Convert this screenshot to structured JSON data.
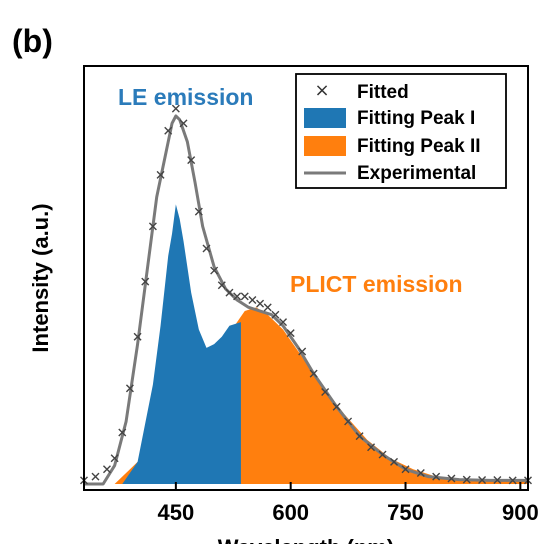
{
  "panel_label": "(b)",
  "chart_data": {
    "type": "area",
    "xlabel": "Wavelength (nm)",
    "ylabel": "Intensity (a.u.)",
    "xlim": [
      330,
      910
    ],
    "ylim": [
      0,
      1.05
    ],
    "xticks": [
      450,
      600,
      750,
      900
    ],
    "grid": false,
    "legend_position": "top-right",
    "legend": [
      {
        "label": "Fitted",
        "symbol": "cross"
      },
      {
        "label": "Fitting Peak I",
        "symbol": "box",
        "color": "#1f77b4"
      },
      {
        "label": "Fitting Peak II",
        "symbol": "box",
        "color": "#ff7f0e"
      },
      {
        "label": "Experimental",
        "symbol": "line",
        "color": "#7a7a7a"
      }
    ],
    "annotations": [
      {
        "text": "LE emission",
        "color": "#2b7bba"
      },
      {
        "text": "PLICT emission",
        "color": "#ff7f0e"
      }
    ],
    "series": [
      {
        "name": "Fitting Peak I",
        "kind": "filled",
        "color": "#1f77b4",
        "x": [
          380,
          400,
          420,
          430,
          440,
          445,
          450,
          455,
          460,
          470,
          480,
          490,
          500,
          510,
          520,
          535
        ],
        "values": [
          0.0,
          0.06,
          0.27,
          0.43,
          0.62,
          0.68,
          0.76,
          0.72,
          0.66,
          0.52,
          0.42,
          0.37,
          0.38,
          0.4,
          0.43,
          0.44
        ]
      },
      {
        "name": "Fitting Peak II",
        "kind": "filled",
        "color": "#ff7f0e",
        "x": [
          330,
          370,
          400,
          420,
          440,
          460,
          480,
          500,
          520,
          540,
          555,
          570,
          590,
          610,
          640,
          670,
          700,
          730,
          760,
          790,
          820,
          850,
          880,
          910
        ],
        "values": [
          0.0,
          0.0,
          0.06,
          0.09,
          0.13,
          0.18,
          0.25,
          0.32,
          0.41,
          0.47,
          0.48,
          0.46,
          0.42,
          0.36,
          0.27,
          0.19,
          0.12,
          0.07,
          0.04,
          0.02,
          0.015,
          0.012,
          0.012,
          0.012
        ]
      },
      {
        "name": "Experimental",
        "kind": "line",
        "color": "#7a7a7a",
        "x": [
          330,
          355,
          370,
          385,
          400,
          415,
          425,
          435,
          445,
          450,
          455,
          465,
          475,
          485,
          500,
          515,
          530,
          545,
          560,
          575,
          590,
          610,
          630,
          660,
          690,
          720,
          750,
          780,
          820,
          860,
          910
        ],
        "values": [
          0.0,
          0.0,
          0.05,
          0.17,
          0.38,
          0.62,
          0.78,
          0.88,
          0.98,
          1.0,
          0.99,
          0.93,
          0.82,
          0.7,
          0.59,
          0.53,
          0.5,
          0.48,
          0.47,
          0.46,
          0.43,
          0.37,
          0.3,
          0.21,
          0.13,
          0.08,
          0.04,
          0.02,
          0.012,
          0.01,
          0.01
        ]
      },
      {
        "name": "Fitted",
        "kind": "markers",
        "marker": "cross",
        "color": "#444444",
        "x": [
          330,
          345,
          360,
          370,
          380,
          390,
          400,
          410,
          420,
          430,
          440,
          450,
          460,
          470,
          480,
          490,
          500,
          510,
          520,
          530,
          540,
          550,
          560,
          570,
          580,
          590,
          600,
          615,
          630,
          645,
          660,
          675,
          690,
          705,
          720,
          735,
          750,
          770,
          790,
          810,
          830,
          850,
          870,
          890,
          910
        ],
        "values": [
          0.01,
          0.02,
          0.04,
          0.07,
          0.14,
          0.26,
          0.4,
          0.55,
          0.7,
          0.84,
          0.96,
          1.02,
          0.98,
          0.88,
          0.74,
          0.64,
          0.58,
          0.54,
          0.52,
          0.51,
          0.51,
          0.5,
          0.49,
          0.48,
          0.46,
          0.44,
          0.41,
          0.36,
          0.3,
          0.25,
          0.21,
          0.17,
          0.13,
          0.1,
          0.08,
          0.06,
          0.04,
          0.03,
          0.02,
          0.015,
          0.012,
          0.011,
          0.011,
          0.01,
          0.01
        ]
      }
    ]
  }
}
